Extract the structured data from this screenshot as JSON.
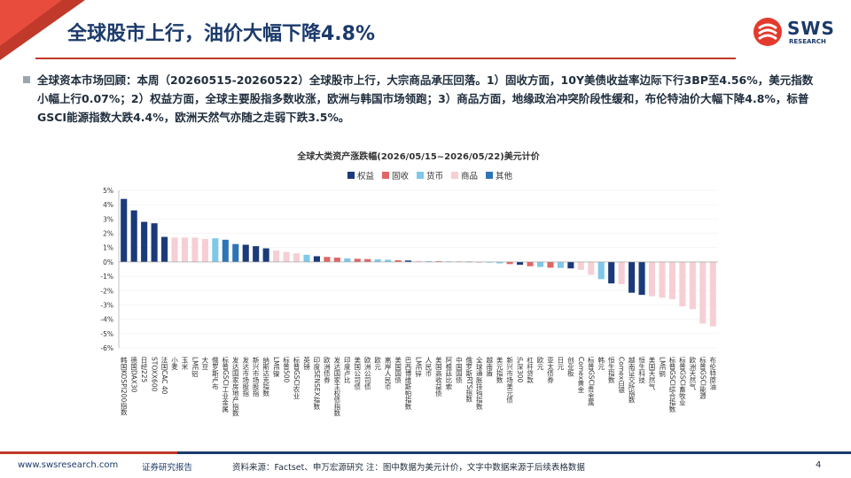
{
  "slide": {
    "title": "全球股市上行，油价大幅下降4.8%",
    "logo_text": "SWS",
    "logo_sub": "RESEARCH",
    "summary": "全球资本市场回顾：本周（20260515-20260522）全球股市上行，大宗商品承压回落。1）固收方面，10Y美债收益率边际下行3BP至4.56%，美元指数小幅上行0.07%；2）权益方面，全球主要股指多数收涨，欧洲与韩国市场领跑；3）商品方面，地缘政治冲突阶段性缓和，布伦特油价大幅下降4.8%，标普GSCI能源指数大跌4.4%，欧洲天然气亦随之走弱下跌3.5%。"
  },
  "footer": {
    "url": "www.swsresearch.com",
    "label": "证券研究报告",
    "source": "资料来源：Factset、申万宏源研究 注：图中数据为美元计价，文字中数据来源于后续表格数据",
    "page": "4"
  },
  "colors": {
    "权益": "#1b3a7a",
    "固收": "#e06666",
    "货币": "#7ec8ea",
    "商品": "#f6cfd5",
    "其他": "#2e75b6"
  },
  "chart_data": {
    "type": "bar",
    "title": "全球大类资产涨跌幅(2026/05/15~2026/05/22)美元计价",
    "ylim": [
      -6,
      5
    ],
    "yticks": [
      "-6%",
      "-5%",
      "-4%",
      "-3%",
      "-2%",
      "-1%",
      "0%",
      "1%",
      "2%",
      "3%",
      "4%",
      "5%"
    ],
    "legend": [
      "权益",
      "固收",
      "货币",
      "商品",
      "其他"
    ],
    "legend_position": "top",
    "categories": [
      "韩国KOSPI200指数",
      "德国DAX30",
      "日经225",
      "STOXX600",
      "法国CAC 40",
      "小麦",
      "玉米",
      "LME铝",
      "大豆",
      "俄罗斯卢布",
      "标普GSCI工业金属",
      "发达国家房地产指数",
      "发达市场股指",
      "新兴市场股指",
      "纳斯达克指数",
      "LME镍",
      "标普500",
      "标普GSCI农业",
      "英镑",
      "印度SENSEX指数",
      "欧洲债券",
      "发达国家主权债指数",
      "印度卢比",
      "美国公司债",
      "欧洲公司债",
      "欧元",
      "离岸人民币",
      "美国国债",
      "巴西博维斯帕指数",
      "LME锌",
      "人民币",
      "美国高收益债",
      "阿根廷比索",
      "中国国债",
      "俄罗斯RTS指数",
      "全球通胀挂钩指数",
      "越南盾",
      "美元指数",
      "新兴市场美元债",
      "沪深300",
      "杠杆贷款",
      "欧元",
      "亚太债券",
      "日元",
      "创业板",
      "Comex黄金",
      "标普GSCI贵金属",
      "韩元",
      "恒生指数",
      "Comex白银",
      "越南证交所指数",
      "恒生科技",
      "美国天然气",
      "LME铜",
      "标普GSCI综合指数",
      "标普GSCI畜牧业",
      "欧洲天然气",
      "标普GSCI能源",
      "布伦特原油"
    ],
    "values": [
      4.4,
      3.6,
      2.8,
      2.7,
      1.75,
      1.7,
      1.7,
      1.7,
      1.6,
      1.65,
      1.55,
      1.25,
      1.2,
      1.1,
      0.95,
      0.8,
      0.7,
      0.6,
      0.5,
      0.4,
      0.35,
      0.3,
      0.25,
      0.22,
      0.2,
      0.18,
      0.15,
      0.12,
      0.1,
      0.08,
      0.06,
      0.05,
      0.04,
      0.03,
      0.02,
      0.0,
      -0.05,
      -0.1,
      -0.15,
      -0.2,
      -0.3,
      -0.35,
      -0.4,
      -0.42,
      -0.45,
      -0.55,
      -0.9,
      -1.2,
      -1.5,
      -1.55,
      -2.15,
      -2.3,
      -2.4,
      -2.5,
      -2.6,
      -3.1,
      -3.3,
      -4.3,
      -4.5
    ],
    "groups": [
      "权益",
      "权益",
      "权益",
      "权益",
      "权益",
      "商品",
      "商品",
      "商品",
      "商品",
      "货币",
      "其他",
      "其他",
      "权益",
      "权益",
      "权益",
      "商品",
      "商品",
      "商品",
      "货币",
      "权益",
      "固收",
      "固收",
      "货币",
      "固收",
      "固收",
      "货币",
      "货币",
      "固收",
      "权益",
      "商品",
      "货币",
      "固收",
      "货币",
      "固收",
      "权益",
      "固收",
      "货币",
      "货币",
      "固收",
      "权益",
      "固收",
      "货币",
      "固收",
      "货币",
      "权益",
      "商品",
      "商品",
      "货币",
      "权益",
      "商品",
      "权益",
      "权益",
      "商品",
      "商品",
      "商品",
      "商品",
      "商品",
      "商品",
      "商品"
    ]
  }
}
